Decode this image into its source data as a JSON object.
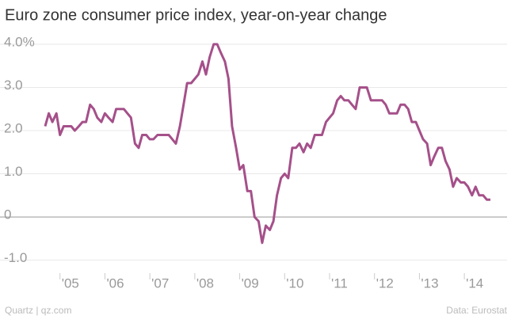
{
  "chart_data": {
    "type": "line",
    "title": "Euro zone consumer price index, year-on-year change",
    "source": "Data: Eurostat",
    "credit": "Quartz | qz.com",
    "x": [
      2004.67,
      2004.75,
      2004.83,
      2004.92,
      2005,
      2005.08,
      2005.17,
      2005.25,
      2005.33,
      2005.42,
      2005.5,
      2005.58,
      2005.67,
      2005.75,
      2005.83,
      2005.92,
      2006,
      2006.08,
      2006.17,
      2006.25,
      2006.33,
      2006.42,
      2006.5,
      2006.58,
      2006.67,
      2006.75,
      2006.83,
      2006.92,
      2007,
      2007.08,
      2007.17,
      2007.25,
      2007.33,
      2007.42,
      2007.5,
      2007.58,
      2007.67,
      2007.75,
      2007.83,
      2007.92,
      2008,
      2008.08,
      2008.17,
      2008.25,
      2008.33,
      2008.42,
      2008.5,
      2008.58,
      2008.67,
      2008.75,
      2008.83,
      2008.92,
      2009,
      2009.08,
      2009.17,
      2009.25,
      2009.33,
      2009.42,
      2009.5,
      2009.58,
      2009.67,
      2009.75,
      2009.83,
      2009.92,
      2010,
      2010.08,
      2010.17,
      2010.25,
      2010.33,
      2010.42,
      2010.5,
      2010.58,
      2010.67,
      2010.75,
      2010.83,
      2010.92,
      2011,
      2011.08,
      2011.17,
      2011.25,
      2011.33,
      2011.42,
      2011.5,
      2011.58,
      2011.67,
      2011.75,
      2011.83,
      2011.92,
      2012,
      2012.08,
      2012.17,
      2012.25,
      2012.33,
      2012.42,
      2012.5,
      2012.58,
      2012.67,
      2012.75,
      2012.83,
      2012.92,
      2013,
      2013.08,
      2013.17,
      2013.25,
      2013.33,
      2013.42,
      2013.5,
      2013.58,
      2013.67,
      2013.75,
      2013.83,
      2013.92,
      2014,
      2014.08,
      2014.17,
      2014.25,
      2014.33,
      2014.42,
      2014.5,
      2014.58
    ],
    "series": [
      {
        "name": "CPI",
        "color": "#a5508a",
        "values": [
          2.1,
          2.4,
          2.2,
          2.4,
          1.9,
          2.1,
          2.1,
          2.1,
          2.0,
          2.1,
          2.2,
          2.2,
          2.6,
          2.5,
          2.3,
          2.2,
          2.4,
          2.3,
          2.2,
          2.5,
          2.5,
          2.5,
          2.4,
          2.3,
          1.7,
          1.6,
          1.9,
          1.9,
          1.8,
          1.8,
          1.9,
          1.9,
          1.9,
          1.9,
          1.8,
          1.7,
          2.1,
          2.6,
          3.1,
          3.1,
          3.2,
          3.3,
          3.6,
          3.3,
          3.7,
          4.0,
          4.0,
          3.8,
          3.6,
          3.2,
          2.1,
          1.6,
          1.1,
          1.2,
          0.6,
          0.6,
          0.0,
          -0.1,
          -0.6,
          -0.2,
          -0.3,
          -0.1,
          0.5,
          0.9,
          1.0,
          0.9,
          1.6,
          1.6,
          1.7,
          1.5,
          1.7,
          1.6,
          1.9,
          1.9,
          1.9,
          2.2,
          2.3,
          2.4,
          2.7,
          2.8,
          2.7,
          2.7,
          2.6,
          2.5,
          3.0,
          3.0,
          3.0,
          2.7,
          2.7,
          2.7,
          2.7,
          2.6,
          2.4,
          2.4,
          2.4,
          2.6,
          2.6,
          2.5,
          2.2,
          2.2,
          2.0,
          1.8,
          1.7,
          1.2,
          1.4,
          1.6,
          1.6,
          1.3,
          1.1,
          0.7,
          0.9,
          0.8,
          0.8,
          0.7,
          0.5,
          0.7,
          0.5,
          0.5,
          0.4,
          0.4
        ]
      }
    ],
    "xlim": [
      2004.37,
      2014.95
    ],
    "xticks": [
      {
        "value": 2005,
        "label": "'05"
      },
      {
        "value": 2006,
        "label": "'06"
      },
      {
        "value": 2007,
        "label": "'07"
      },
      {
        "value": 2008,
        "label": "'08"
      },
      {
        "value": 2009,
        "label": "'09"
      },
      {
        "value": 2010,
        "label": "'10"
      },
      {
        "value": 2011,
        "label": "'11"
      },
      {
        "value": 2012,
        "label": "'12"
      },
      {
        "value": 2013,
        "label": "'13"
      },
      {
        "value": 2014,
        "label": "'14"
      }
    ],
    "ylim": [
      -1.3,
      4.2
    ],
    "yticks": [
      {
        "value": -1,
        "label": "-1.0"
      },
      0,
      {
        "value": 1,
        "label": "1.0"
      },
      {
        "value": 2,
        "label": "2.0"
      },
      {
        "value": 3,
        "label": "3.0"
      },
      {
        "value": 4,
        "label": "4.0%"
      }
    ],
    "grid": true
  }
}
